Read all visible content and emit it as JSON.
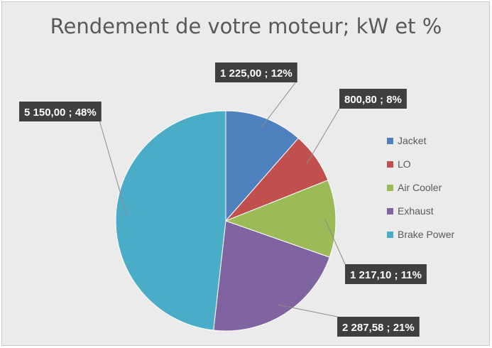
{
  "chart_data": {
    "type": "pie",
    "title": "Rendement de votre moteur; kW et %",
    "legend_position": "right",
    "slices": [
      {
        "name": "Jacket",
        "value": 1225.0,
        "percent": 12,
        "label": "1 225,00 ; 12%",
        "color": "#4e81bd"
      },
      {
        "name": "LO",
        "value": 800.8,
        "percent": 8,
        "label": "800,80 ; 8%",
        "color": "#c0504d"
      },
      {
        "name": "Air Cooler",
        "value": 1217.1,
        "percent": 11,
        "label": "1 217,10 ; 11%",
        "color": "#9bbb59"
      },
      {
        "name": "Exhaust",
        "value": 2287.58,
        "percent": 21,
        "label": "2 287,58 ; 21%",
        "color": "#8064a2"
      },
      {
        "name": "Brake Power",
        "value": 5150.0,
        "percent": 48,
        "label": "5 150,00 ; 48%",
        "color": "#4aacc6"
      }
    ]
  }
}
